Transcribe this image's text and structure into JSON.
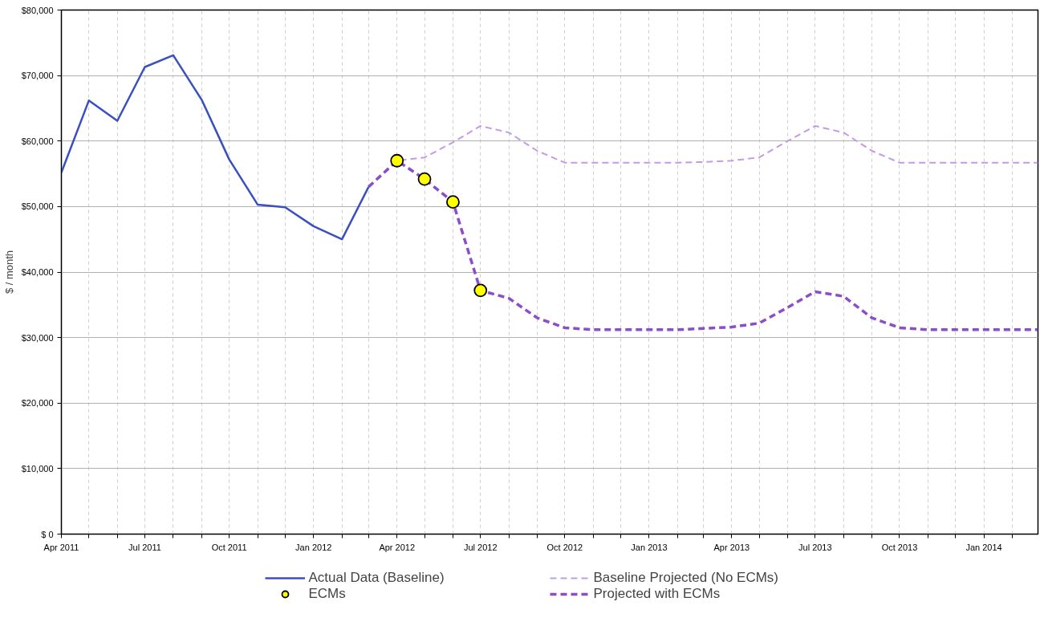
{
  "chart_data": {
    "type": "line",
    "ylabel": "$ / month",
    "xlim": [
      "2011-04-01",
      "2014-03-01"
    ],
    "xticks": [
      {
        "value": "2011-04-01",
        "label": "Apr 2011"
      },
      {
        "value": "2011-05-01",
        "label": null
      },
      {
        "value": "2011-06-01",
        "label": null
      },
      {
        "value": "2011-07-01",
        "label": "Jul 2011"
      },
      {
        "value": "2011-08-01",
        "label": null
      },
      {
        "value": "2011-09-01",
        "label": null
      },
      {
        "value": "2011-10-01",
        "label": "Oct 2011"
      },
      {
        "value": "2011-11-01",
        "label": null
      },
      {
        "value": "2011-12-01",
        "label": null
      },
      {
        "value": "2012-01-01",
        "label": "Jan 2012"
      },
      {
        "value": "2012-02-01",
        "label": null
      },
      {
        "value": "2012-03-01",
        "label": null
      },
      {
        "value": "2012-04-01",
        "label": "Apr 2012"
      },
      {
        "value": "2012-05-01",
        "label": null
      },
      {
        "value": "2012-06-01",
        "label": null
      },
      {
        "value": "2012-07-01",
        "label": "Jul 2012"
      },
      {
        "value": "2012-08-01",
        "label": null
      },
      {
        "value": "2012-09-01",
        "label": null
      },
      {
        "value": "2012-10-01",
        "label": "Oct 2012"
      },
      {
        "value": "2012-11-01",
        "label": null
      },
      {
        "value": "2012-12-01",
        "label": null
      },
      {
        "value": "2013-01-01",
        "label": "Jan 2013"
      },
      {
        "value": "2013-02-01",
        "label": null
      },
      {
        "value": "2013-03-01",
        "label": null
      },
      {
        "value": "2013-04-01",
        "label": "Apr 2013"
      },
      {
        "value": "2013-05-01",
        "label": null
      },
      {
        "value": "2013-06-01",
        "label": null
      },
      {
        "value": "2013-07-01",
        "label": "Jul 2013"
      },
      {
        "value": "2013-08-01",
        "label": null
      },
      {
        "value": "2013-09-01",
        "label": null
      },
      {
        "value": "2013-10-01",
        "label": "Oct 2013"
      },
      {
        "value": "2013-11-01",
        "label": null
      },
      {
        "value": "2013-12-01",
        "label": null
      },
      {
        "value": "2014-01-01",
        "label": "Jan 2014"
      },
      {
        "value": "2014-02-01",
        "label": null
      }
    ],
    "ylim": [
      0,
      80000
    ],
    "yticks": [
      {
        "value": 0,
        "label": "$ 0"
      },
      {
        "value": 10000,
        "label": "$10,000"
      },
      {
        "value": 20000,
        "label": "$20,000"
      },
      {
        "value": 30000,
        "label": "$30,000"
      },
      {
        "value": 40000,
        "label": "$40,000"
      },
      {
        "value": 50000,
        "label": "$50,000"
      },
      {
        "value": 60000,
        "label": "$60,000"
      },
      {
        "value": 70000,
        "label": "$70,000"
      },
      {
        "value": 80000,
        "label": "$80,000"
      }
    ],
    "grid": true,
    "legend": "bottom",
    "series": [
      {
        "name": "Actual Data (Baseline)",
        "color": "#3a4fc0",
        "line_style": "solid",
        "x": [
          "2011-04-01",
          "2011-05-01",
          "2011-06-01",
          "2011-07-01",
          "2011-08-01",
          "2011-09-01",
          "2011-10-01",
          "2011-11-01",
          "2011-12-01",
          "2012-01-01",
          "2012-02-01",
          "2012-03-01"
        ],
        "values": [
          55200,
          66200,
          63100,
          71300,
          73100,
          66300,
          57200,
          50300,
          49900,
          47000,
          45000,
          53000
        ]
      },
      {
        "name": "Baseline Projected (No ECMs)",
        "color": "#c49ae6",
        "line_style": "dashed",
        "x": [
          "2012-03-01",
          "2012-04-01",
          "2012-05-01",
          "2012-06-01",
          "2012-07-01",
          "2012-08-01",
          "2012-09-01",
          "2012-10-01",
          "2012-11-01",
          "2012-12-01",
          "2013-01-01",
          "2013-02-01",
          "2013-03-01",
          "2013-04-01",
          "2013-05-01",
          "2013-06-01",
          "2013-07-01",
          "2013-08-01",
          "2013-09-01",
          "2013-10-01",
          "2013-11-01",
          "2013-12-01",
          "2014-01-01",
          "2014-02-01",
          "2014-03-01"
        ],
        "values": [
          53000,
          57000,
          57500,
          59800,
          62300,
          61300,
          58500,
          56700,
          56700,
          56700,
          56700,
          56700,
          56800,
          57000,
          57500,
          60000,
          62300,
          61300,
          58500,
          56700,
          56700,
          56700,
          56700,
          56700,
          56700
        ]
      },
      {
        "name": "ECMs",
        "type": "scatter",
        "marker": "circle",
        "color": "#ffff00",
        "x": [
          "2012-04-01",
          "2012-05-01",
          "2012-06-01",
          "2012-07-01"
        ],
        "values": [
          57000,
          54200,
          50700,
          37200
        ]
      },
      {
        "name": "Projected with ECMs",
        "color": "#8a4fc8",
        "line_style": "dashed",
        "x": [
          "2012-03-01",
          "2012-04-01",
          "2012-05-01",
          "2012-06-01",
          "2012-07-01",
          "2012-08-01",
          "2012-09-01",
          "2012-10-01",
          "2012-11-01",
          "2012-12-01",
          "2013-01-01",
          "2013-02-01",
          "2013-03-01",
          "2013-04-01",
          "2013-05-01",
          "2013-06-01",
          "2013-07-01",
          "2013-08-01",
          "2013-09-01",
          "2013-10-01",
          "2013-11-01",
          "2013-12-01",
          "2014-01-01",
          "2014-02-01",
          "2014-03-01"
        ],
        "values": [
          53000,
          57000,
          54200,
          50700,
          37200,
          36000,
          33000,
          31500,
          31200,
          31200,
          31200,
          31200,
          31400,
          31600,
          32200,
          34600,
          37000,
          36300,
          33000,
          31500,
          31200,
          31200,
          31200,
          31200,
          31200
        ]
      }
    ]
  }
}
